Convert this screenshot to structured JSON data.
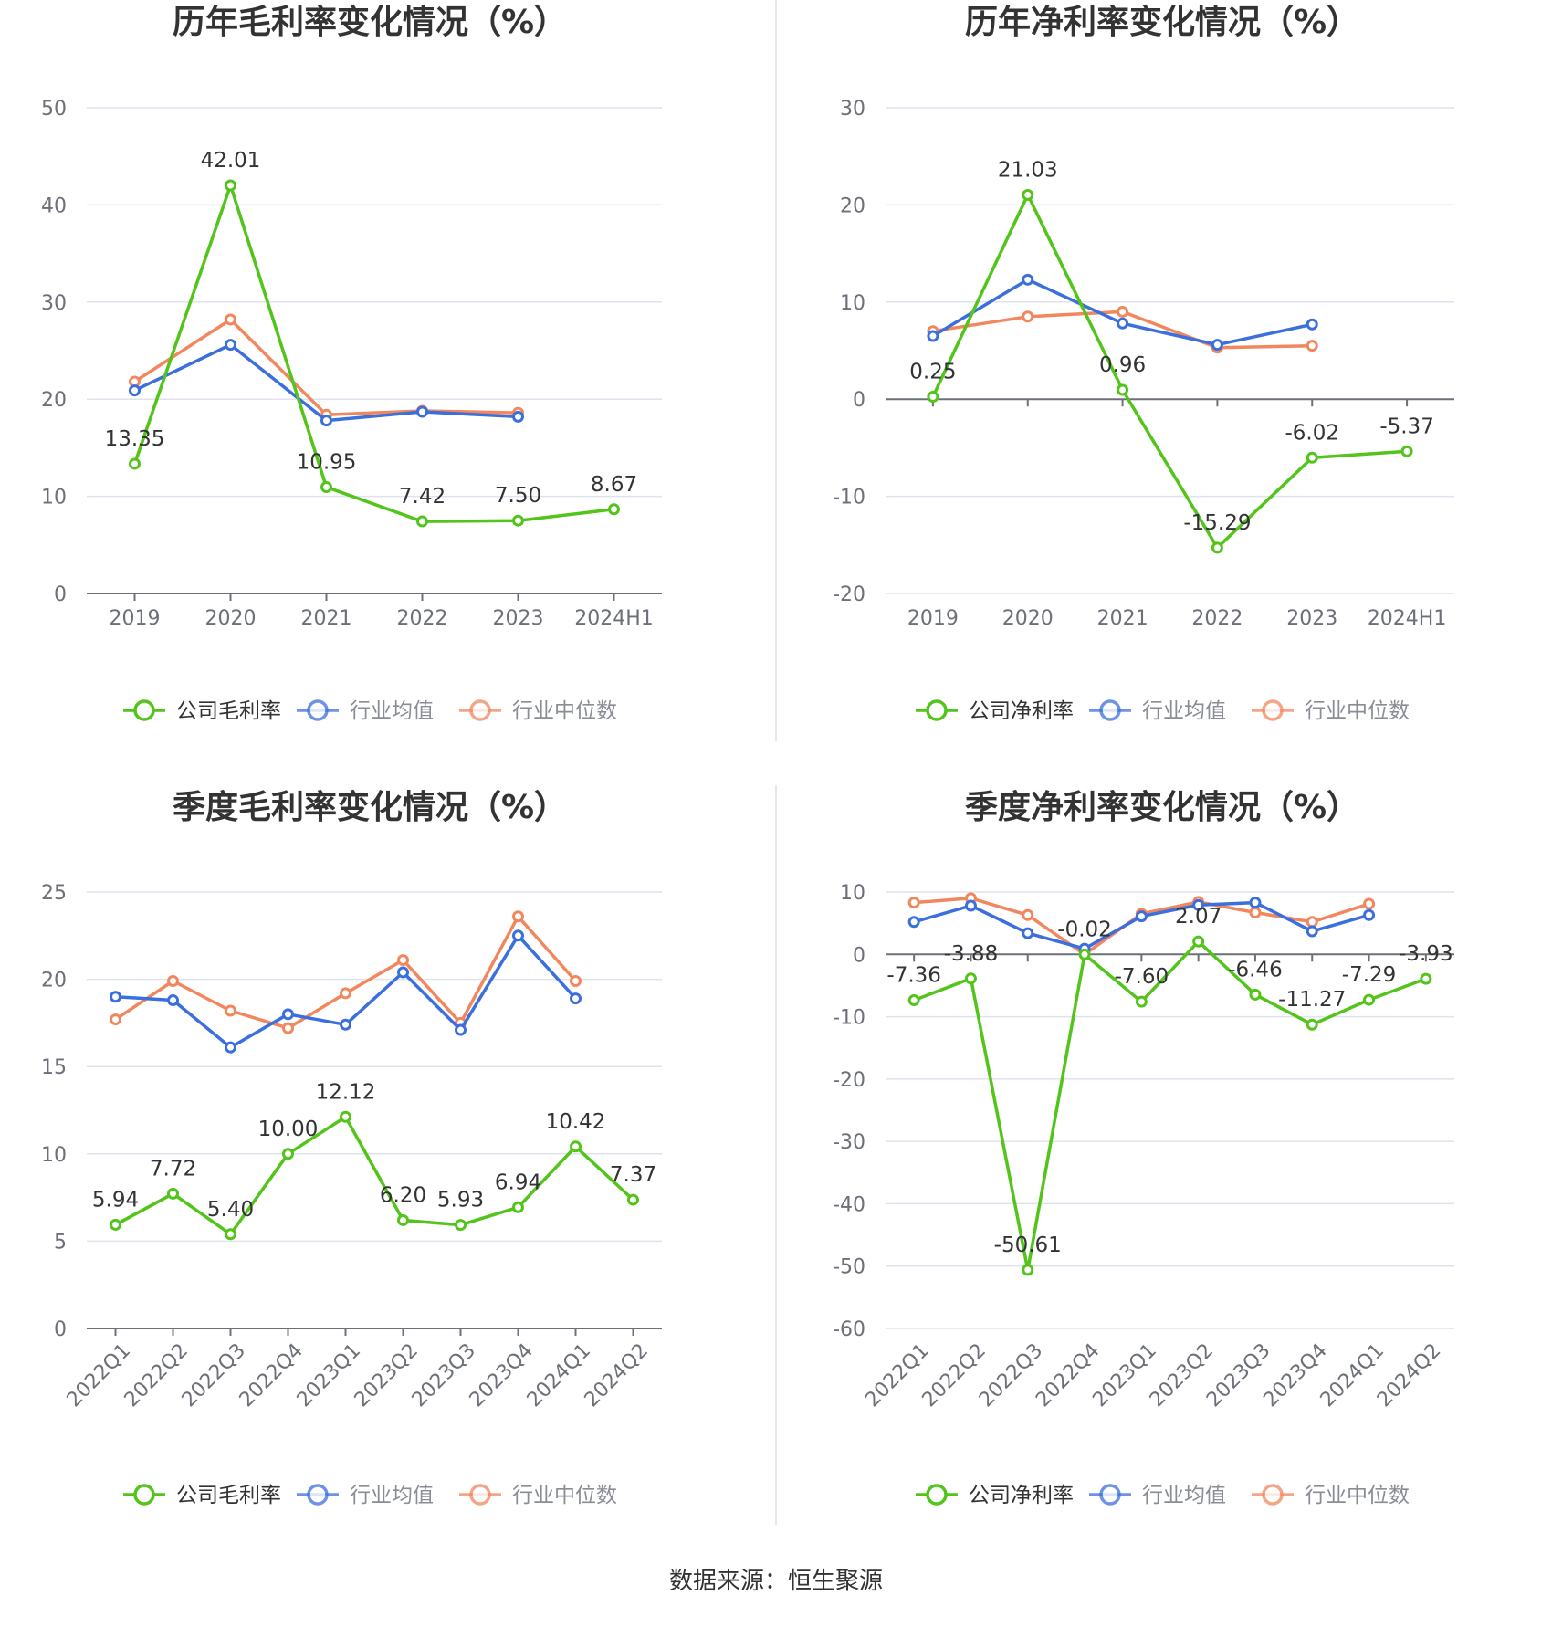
{
  "source_label": "数据来源：恒生聚源",
  "colors": {
    "company": "#52c41a",
    "avg": "#3b6fde",
    "median": "#f2875e",
    "grid": "#dfe3ee",
    "axis": "#6e7079"
  },
  "chart_data": [
    {
      "id": "annual-gross",
      "type": "line",
      "title": "历年毛利率变化情况（%）",
      "categories": [
        "2019",
        "2020",
        "2021",
        "2022",
        "2023",
        "2024H1"
      ],
      "ylim": [
        0,
        50
      ],
      "yticks": [
        0,
        10,
        20,
        30,
        40,
        50
      ],
      "series": [
        {
          "name": "公司毛利率",
          "key": "company",
          "values": [
            13.35,
            42.01,
            10.95,
            7.42,
            7.5,
            8.67
          ],
          "labels": [
            "13.35",
            "42.01",
            "10.95",
            "7.42",
            "7.50",
            "8.67"
          ]
        },
        {
          "name": "行业均值",
          "key": "avg",
          "values": [
            20.9,
            25.6,
            17.8,
            18.7,
            18.2,
            null
          ]
        },
        {
          "name": "行业中位数",
          "key": "median",
          "values": [
            21.8,
            28.2,
            18.4,
            18.8,
            18.6,
            null
          ]
        }
      ]
    },
    {
      "id": "annual-net",
      "type": "line",
      "title": "历年净利率变化情况（%）",
      "categories": [
        "2019",
        "2020",
        "2021",
        "2022",
        "2023",
        "2024H1"
      ],
      "ylim": [
        -20,
        30
      ],
      "yticks": [
        -20,
        -10,
        0,
        10,
        20,
        30
      ],
      "series": [
        {
          "name": "公司净利率",
          "key": "company",
          "values": [
            0.25,
            21.03,
            0.96,
            -15.29,
            -6.02,
            -5.37
          ],
          "labels": [
            "0.25",
            "21.03",
            "0.96",
            "-15.29",
            "-6.02",
            "-5.37"
          ]
        },
        {
          "name": "行业均值",
          "key": "avg",
          "values": [
            6.5,
            12.3,
            7.8,
            5.6,
            7.7,
            null
          ]
        },
        {
          "name": "行业中位数",
          "key": "median",
          "values": [
            7.0,
            8.5,
            9.0,
            5.3,
            5.5,
            null
          ]
        }
      ]
    },
    {
      "id": "quarter-gross",
      "type": "line",
      "title": "季度毛利率变化情况（%）",
      "categories": [
        "2022Q1",
        "2022Q2",
        "2022Q3",
        "2022Q4",
        "2023Q1",
        "2023Q2",
        "2023Q3",
        "2023Q4",
        "2024Q1",
        "2024Q2"
      ],
      "ylim": [
        0,
        25
      ],
      "yticks": [
        0,
        5,
        10,
        15,
        20,
        25
      ],
      "series": [
        {
          "name": "公司毛利率",
          "key": "company",
          "values": [
            5.94,
            7.72,
            5.4,
            10.0,
            12.12,
            6.2,
            5.93,
            6.94,
            10.42,
            7.37
          ],
          "labels": [
            "5.94",
            "7.72",
            "5.40",
            "10.00",
            "12.12",
            "6.20",
            "5.93",
            "6.94",
            "10.42",
            "7.37"
          ]
        },
        {
          "name": "行业均值",
          "key": "avg",
          "values": [
            19.0,
            18.8,
            16.1,
            18.0,
            17.4,
            20.4,
            17.1,
            22.5,
            18.9,
            null
          ]
        },
        {
          "name": "行业中位数",
          "key": "median",
          "values": [
            17.7,
            19.9,
            18.2,
            17.2,
            19.2,
            21.1,
            17.5,
            23.6,
            19.9,
            null
          ]
        }
      ]
    },
    {
      "id": "quarter-net",
      "type": "line",
      "title": "季度净利率变化情况（%）",
      "categories": [
        "2022Q1",
        "2022Q2",
        "2022Q3",
        "2022Q4",
        "2023Q1",
        "2023Q2",
        "2023Q3",
        "2023Q4",
        "2024Q1",
        "2024Q2"
      ],
      "ylim": [
        -60,
        10
      ],
      "yticks": [
        -60,
        -50,
        -40,
        -30,
        -20,
        -10,
        0,
        10
      ],
      "series": [
        {
          "name": "公司净利率",
          "key": "company",
          "values": [
            -7.36,
            -3.88,
            -50.61,
            -0.02,
            -7.6,
            2.07,
            -6.46,
            -11.27,
            -7.29,
            -3.93
          ],
          "labels": [
            "-7.36",
            "-3.88",
            "-50.61",
            "-0.02",
            "-7.60",
            "2.07",
            "-6.46",
            "-11.27",
            "-7.29",
            "-3.93"
          ]
        },
        {
          "name": "行业均值",
          "key": "avg",
          "values": [
            5.2,
            7.8,
            3.4,
            0.9,
            6.1,
            7.9,
            8.3,
            3.7,
            6.3,
            null
          ]
        },
        {
          "name": "行业中位数",
          "key": "median",
          "values": [
            8.3,
            9.0,
            6.3,
            0.0,
            6.5,
            8.4,
            6.7,
            5.2,
            8.1,
            null
          ]
        }
      ]
    }
  ]
}
